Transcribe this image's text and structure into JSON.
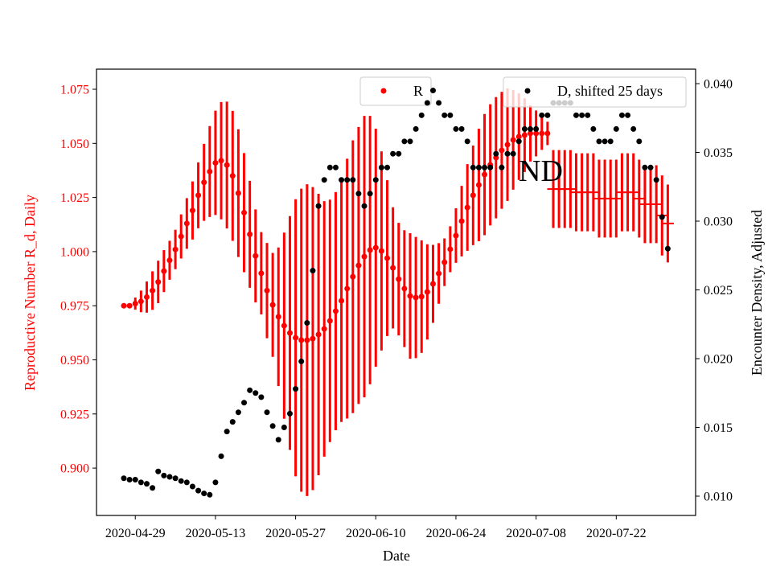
{
  "chart_data": {
    "type": "scatter",
    "title": "",
    "xlabel": "Date",
    "ylabel_left": "Reproductive Number R_d, Daily",
    "ylabel_right": "Encounter Density, Adjusted",
    "start_date": "2020-04-27",
    "x_ticks": [
      {
        "day": 2,
        "label": "2020-04-29"
      },
      {
        "day": 16,
        "label": "2020-05-13"
      },
      {
        "day": 30,
        "label": "2020-05-27"
      },
      {
        "day": 44,
        "label": "2020-06-10"
      },
      {
        "day": 58,
        "label": "2020-06-24"
      },
      {
        "day": 72,
        "label": "2020-07-08"
      },
      {
        "day": 86,
        "label": "2020-07-22"
      }
    ],
    "ylim_left": [
      0.8885,
      1.0935
    ],
    "yticks_left": [
      "0.900",
      "0.925",
      "0.950",
      "0.975",
      "1.000",
      "1.025",
      "1.050",
      "1.075"
    ],
    "ylim_right": [
      0.0089,
      0.0418
    ],
    "yticks_right": [
      "0.010",
      "0.015",
      "0.020",
      "0.025",
      "0.030",
      "0.035",
      "0.040"
    ],
    "annotation": "ND",
    "colors": {
      "R": "#ff0000",
      "D": "#000000",
      "left_axis_text": "#ff0000"
    },
    "series": [
      {
        "name": "R",
        "axis": "left",
        "marker": "dot",
        "start_day": 0,
        "values": [
          0.975,
          0.975,
          0.976,
          0.977,
          0.979,
          0.982,
          0.986,
          0.991,
          0.996,
          1.001,
          1.007,
          1.013,
          1.019,
          1.026,
          1.032,
          1.037,
          1.041,
          1.042,
          1.04,
          1.035,
          1.027,
          1.018,
          1.008,
          0.998,
          0.99,
          0.982,
          0.9754,
          0.9699,
          0.9658,
          0.9624,
          0.9602,
          0.9591,
          0.9591,
          0.9598,
          0.9617,
          0.9643,
          0.968,
          0.9725,
          0.9773,
          0.9829,
          0.9884,
          0.9936,
          0.9977,
          1.0007,
          1.0018,
          1.0003,
          0.997,
          0.9925,
          0.9873,
          0.9829,
          0.9795,
          0.9788,
          0.9792,
          0.9814,
          0.9851,
          0.9899,
          0.9951,
          1.0011,
          1.0074,
          1.0141,
          1.0204,
          1.026,
          1.0308,
          1.0356,
          1.0401,
          1.0434,
          1.0468,
          1.0494,
          1.0516,
          1.0531,
          1.0538,
          1.0546,
          1.0546,
          1.0546,
          1.0546
        ],
        "errors": [
          0.001,
          0.001,
          0.0028,
          0.005,
          0.0072,
          0.0089,
          0.0098,
          0.0097,
          0.009,
          0.0091,
          0.0102,
          0.0117,
          0.0134,
          0.0152,
          0.0178,
          0.021,
          0.0241,
          0.0271,
          0.0293,
          0.03,
          0.0295,
          0.0275,
          0.0247,
          0.0215,
          0.019,
          0.022,
          0.024,
          0.032,
          0.043,
          0.054,
          0.064,
          0.07,
          0.072,
          0.07,
          0.065,
          0.059,
          0.056,
          0.055,
          0.056,
          0.06,
          0.063,
          0.064,
          0.065,
          0.062,
          0.055,
          0.046,
          0.036,
          0.028,
          0.026,
          0.027,
          0.029,
          0.028,
          0.026,
          0.022,
          0.018,
          0.014,
          0.011,
          0.0106,
          0.0126,
          0.0163,
          0.02,
          0.023,
          0.026,
          0.028,
          0.028,
          0.028,
          0.027,
          0.026,
          0.023,
          0.02,
          0.017,
          0.013,
          0.0106,
          0.0076,
          0.0054
        ]
      },
      {
        "name": "R (ND)",
        "axis": "left",
        "marker": "hline",
        "start_day": 75,
        "values": [
          1.0289,
          1.0289,
          1.0289,
          1.0289,
          1.0274,
          1.0274,
          1.0274,
          1.0274,
          1.0245,
          1.0245,
          1.0245,
          1.0245,
          1.0274,
          1.0274,
          1.0274,
          1.0245,
          1.0219,
          1.0219,
          1.0219,
          1.0167,
          1.013
        ],
        "errors": [
          0.018,
          0.018,
          0.018,
          0.018,
          0.018,
          0.018,
          0.018,
          0.018,
          0.018,
          0.018,
          0.018,
          0.018,
          0.018,
          0.018,
          0.018,
          0.018,
          0.018,
          0.018,
          0.018,
          0.0185,
          0.018
        ]
      },
      {
        "name": "D, shifted 25 days",
        "axis": "right",
        "marker": "dot",
        "start_day": 0,
        "values": [
          0.0113,
          0.0112,
          0.0112,
          0.011,
          0.0109,
          0.0106,
          0.0118,
          0.0115,
          0.0114,
          0.0113,
          0.0111,
          0.011,
          0.0107,
          0.0104,
          0.0102,
          0.0101,
          0.011,
          0.0129,
          0.0147,
          0.0154,
          0.0161,
          0.0168,
          0.0177,
          0.0175,
          0.0172,
          0.0161,
          0.0151,
          0.0141,
          0.015,
          0.016,
          0.0178,
          0.0198,
          0.0226,
          0.0264,
          0.0311,
          0.033,
          0.0339,
          0.0339,
          0.033,
          0.033,
          0.033,
          0.032,
          0.0311,
          0.032,
          0.033,
          0.0339,
          0.0339,
          0.0349,
          0.0349,
          0.0358,
          0.0358,
          0.0367,
          0.0377,
          0.0386,
          0.0395,
          0.0386,
          0.0377,
          0.0377,
          0.0367,
          0.0367,
          0.0358,
          0.0339,
          0.0339,
          0.0339,
          0.0339,
          0.0349,
          0.0339,
          0.0349,
          0.0349,
          0.0358,
          0.0367,
          0.0367,
          0.0367,
          0.0377,
          0.0377,
          0.0386,
          0.0386,
          0.0386,
          0.0386,
          0.0377,
          0.0377,
          0.0377,
          0.0367,
          0.0358,
          0.0358,
          0.0358,
          0.0367,
          0.0377,
          0.0377,
          0.0367,
          0.0358,
          0.0339,
          0.0339,
          0.033,
          0.0303,
          0.028
        ]
      }
    ],
    "legends": [
      {
        "label": "R",
        "position": "top-center"
      },
      {
        "label": "D, shifted 25 days",
        "position": "top-right"
      }
    ]
  }
}
